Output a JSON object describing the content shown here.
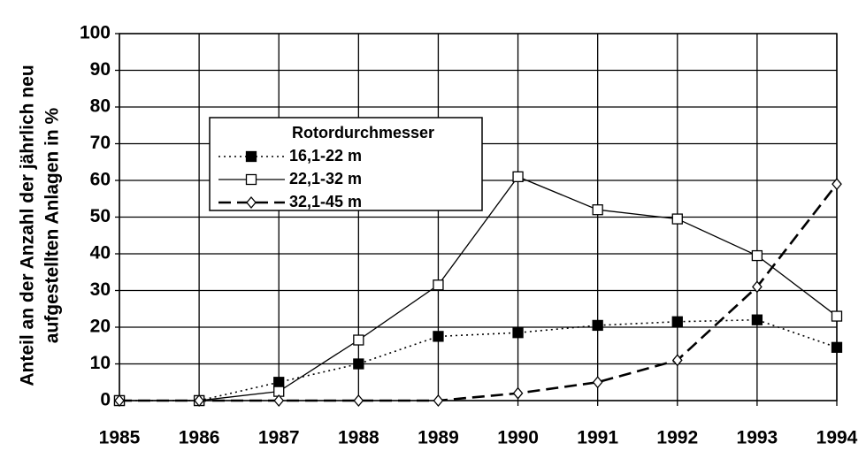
{
  "chart_data": {
    "type": "line",
    "ylabel": [
      "Anteil an der Anzahl der jährlich neu",
      "aufgestellten Anlagen in %"
    ],
    "categories": [
      "1985",
      "1986",
      "1987",
      "1988",
      "1989",
      "1990",
      "1991",
      "1992",
      "1993",
      "1994"
    ],
    "legend_title": "Rotordurchmesser",
    "series": [
      {
        "name": "16,1-22 m",
        "color": "#000000",
        "dash": "dotted",
        "marker": "square-filled",
        "values": [
          0,
          0,
          5,
          10,
          17.5,
          18.5,
          20.5,
          21.5,
          22,
          14.5
        ]
      },
      {
        "name": "22,1-32 m",
        "color": "#000000",
        "dash": "solid",
        "marker": "square-open",
        "values": [
          0,
          0,
          2.5,
          16.5,
          31.5,
          61,
          52,
          49.5,
          39.5,
          23
        ]
      },
      {
        "name": "32,1-45 m",
        "color": "#000000",
        "dash": "dashed",
        "marker": "diamond-open",
        "values": [
          0,
          0,
          0,
          0,
          0,
          2,
          5,
          11,
          31,
          59
        ]
      }
    ],
    "ylim": [
      0,
      100
    ],
    "yticks": [
      0,
      10,
      20,
      30,
      40,
      50,
      60,
      70,
      80,
      90,
      100
    ],
    "grid": true
  }
}
